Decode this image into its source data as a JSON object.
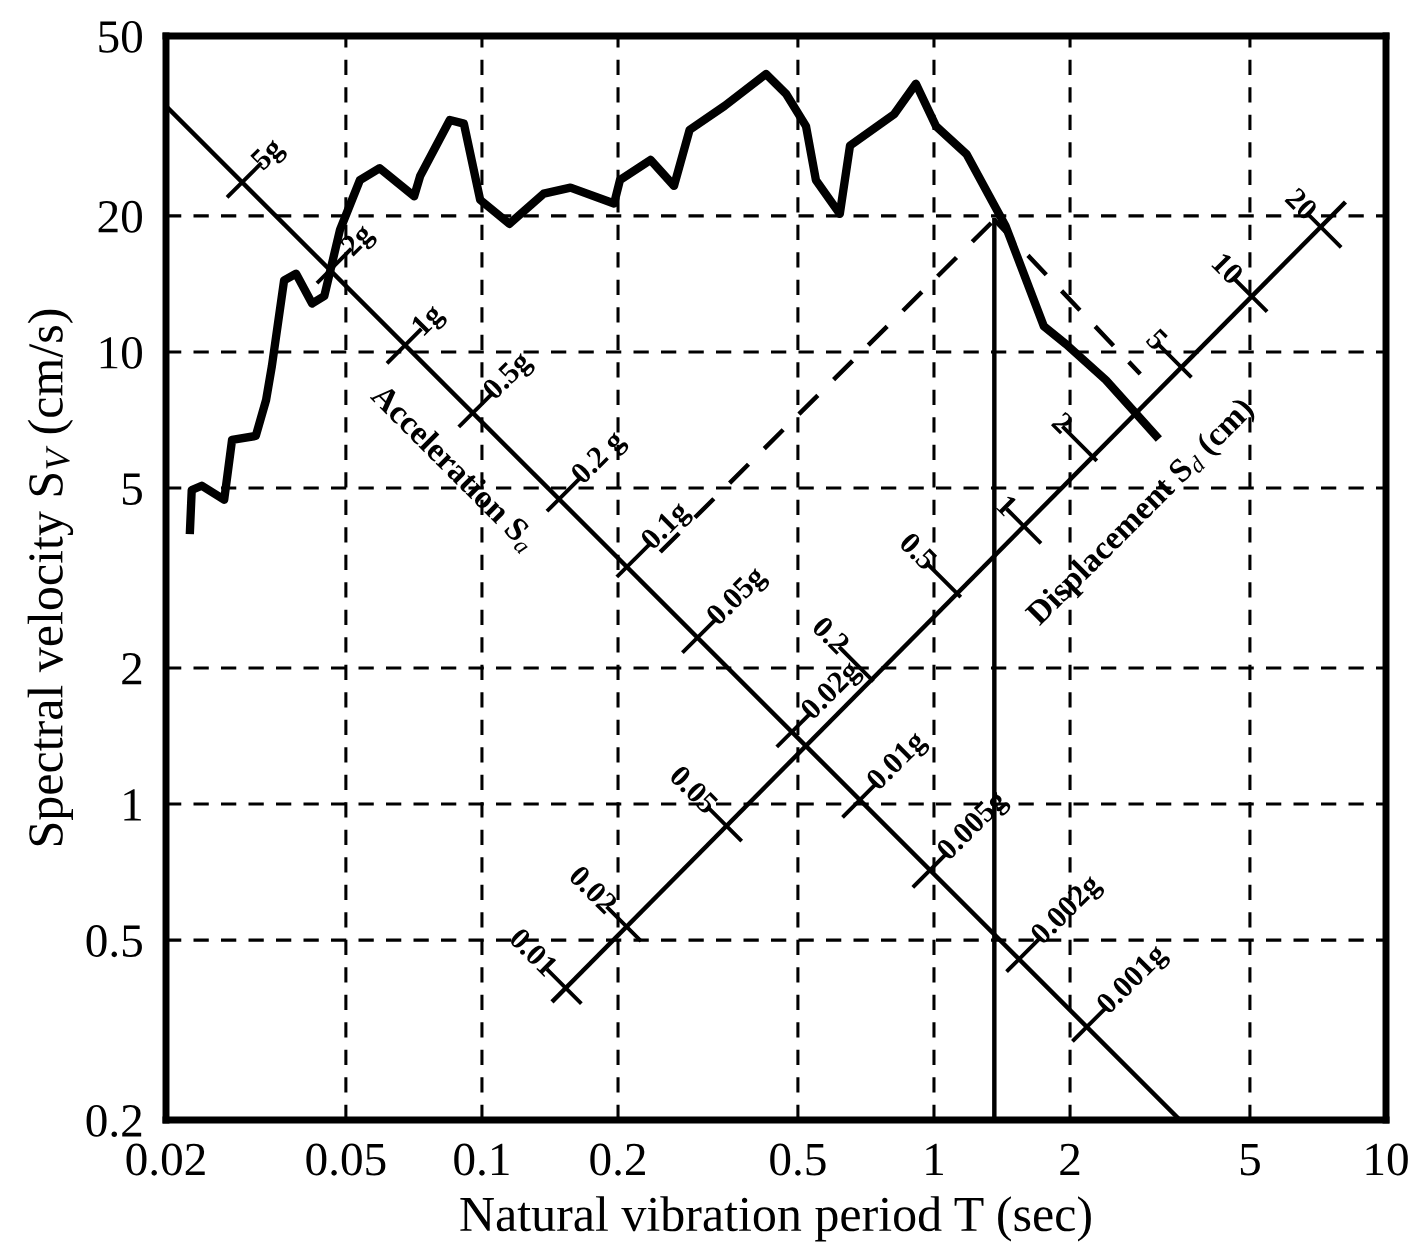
{
  "chart_data": {
    "type": "line",
    "xlabel": "Natural vibration period T (sec)",
    "ylabel": "Spectral velocity S$_{V}$ (cm/s)",
    "log": "xy",
    "grid": true,
    "marker": "none",
    "xlim": [
      0.02,
      10
    ],
    "ylim": [
      0.2,
      50
    ],
    "xticks": [
      0.02,
      0.05,
      0.1,
      0.2,
      0.5,
      1,
      2,
      5,
      10
    ],
    "yticks": [
      0.2,
      0.5,
      1,
      2,
      5,
      10,
      20,
      50
    ],
    "series": [
      {
        "color": "#000000",
        "line_style": "solid",
        "x": [
          0.0226,
          0.0228,
          0.024,
          0.0269,
          0.028,
          0.0316,
          0.0333,
          0.0343,
          0.0365,
          0.0388,
          0.0421,
          0.0448,
          0.0485,
          0.0537,
          0.0594,
          0.0708,
          0.073,
          0.0849,
          0.0912,
          0.0991,
          0.115,
          0.137,
          0.157,
          0.196,
          0.202,
          0.236,
          0.266,
          0.288,
          0.344,
          0.425,
          0.471,
          0.521,
          0.548,
          0.619,
          0.652,
          0.817,
          0.912,
          1.01,
          1.18,
          1.44,
          1.75,
          1.96,
          2.4,
          3.1
        ],
        "values": [
          4.04,
          4.95,
          5.06,
          4.71,
          6.39,
          6.52,
          7.83,
          9.31,
          14.4,
          14.9,
          12.8,
          13.3,
          18.6,
          24.0,
          25.5,
          22.1,
          24.5,
          32.6,
          32.0,
          21.7,
          19.2,
          22.4,
          23.1,
          21.3,
          24.0,
          26.6,
          23.3,
          31.0,
          35.0,
          41.2,
          37.2,
          31.6,
          24.0,
          20.2,
          28.6,
          33.6,
          39.2,
          31.6,
          27.4,
          19.0,
          11.4,
          10.4,
          8.67,
          6.52
        ]
      },
      {
        "color": "#000000",
        "line_style": "solid",
        "x": [
          0.02,
          3.5
        ],
        "values": [
          35,
          0.2
        ]
      },
      {
        "color": "#000000",
        "line_style": "solid",
        "x": [
          0.144,
          8.07
        ],
        "values": [
          0.368,
          21.3
        ]
      },
      {
        "color": "#000000",
        "line_style": "dashed",
        "x": [
          0.248,
          1.36
        ],
        "values": [
          3.61,
          19.6
        ]
      },
      {
        "color": "#000000",
        "line_style": "dashed",
        "x": [
          1.36,
          2.86
        ],
        "values": [
          19.6,
          8.94
        ]
      },
      {
        "color": "#000000",
        "line_style": "solid",
        "x": [
          1.36,
          1.36
        ],
        "values": [
          19.6,
          0.2
        ]
      }
    ],
    "annotations": [
      {
        "text": "5g",
        "x": 0.0298,
        "y": 24.0
      },
      {
        "text": "2g",
        "x": 0.0471,
        "y": 15.5
      },
      {
        "text": "1g",
        "x": 0.0673,
        "y": 10.3
      },
      {
        "text": "0.5g",
        "x": 0.097,
        "y": 7.45
      },
      {
        "text": "0.2 g",
        "x": 0.152,
        "y": 4.85
      },
      {
        "text": "0.1g",
        "x": 0.217,
        "y": 3.47
      },
      {
        "text": "0.05g",
        "x": 0.303,
        "y": 2.36
      },
      {
        "text": "0.02g",
        "x": 0.49,
        "y": 1.46
      },
      {
        "text": "0.01g",
        "x": 0.685,
        "y": 1.02
      },
      {
        "text": "0.005g",
        "x": 0.98,
        "y": 0.714
      },
      {
        "text": "0.002g",
        "x": 1.58,
        "y": 0.465
      },
      {
        "text": "0.001g",
        "x": 2.21,
        "y": 0.326
      },
      {
        "text": "0.01",
        "x": 0.152,
        "y": 0.395
      },
      {
        "text": "0.02",
        "x": 0.206,
        "y": 0.543
      },
      {
        "text": "0.05",
        "x": 0.344,
        "y": 0.904
      },
      {
        "text": "0.2",
        "x": 0.673,
        "y": 2.04
      },
      {
        "text": "0.5",
        "x": 1.05,
        "y": 3.13
      },
      {
        "text": "1",
        "x": 1.58,
        "y": 4.12
      },
      {
        "text": "2",
        "x": 2.1,
        "y": 6.27
      },
      {
        "text": "5",
        "x": 3.4,
        "y": 9.59
      },
      {
        "text": "10",
        "x": 5.0,
        "y": 13.4
      },
      {
        "text": "20",
        "x": 7.29,
        "y": 18.6
      },
      "Acceleration S$_{a}$",
      "Displacement S$_{d}$ (cm)"
    ]
  }
}
